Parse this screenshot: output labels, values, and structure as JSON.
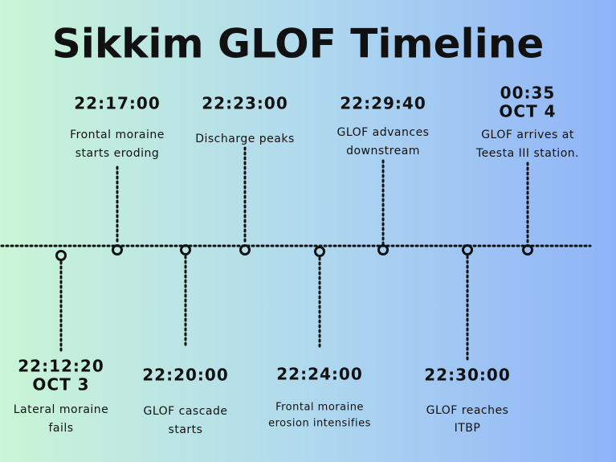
{
  "title": "Sikkim GLOF Timeline",
  "events_above": [
    {
      "time": "22:17:00",
      "description": [
        "Frontal moraine",
        "starts eroding"
      ]
    },
    {
      "time": "22:23:00",
      "description": [
        "Discharge peaks"
      ]
    },
    {
      "time": "22:29:40",
      "description": [
        "GLOF advances",
        "downstream"
      ]
    },
    {
      "time": "00:35",
      "date": "OCT 4",
      "description": [
        "GLOF arrives at",
        "Teesta III station."
      ]
    }
  ],
  "events_below": [
    {
      "time": "22:12:20",
      "date": "OCT 3",
      "description": [
        "Lateral moraine",
        "fails"
      ]
    },
    {
      "time": "22:20:00",
      "description": [
        "GLOF cascade",
        "starts"
      ]
    },
    {
      "time": "22:24:00",
      "description": [
        "Frontal moraine",
        "erosion intensifies"
      ]
    },
    {
      "time": "22:30:00",
      "description": [
        "GLOF reaches",
        "ITBP"
      ]
    }
  ]
}
